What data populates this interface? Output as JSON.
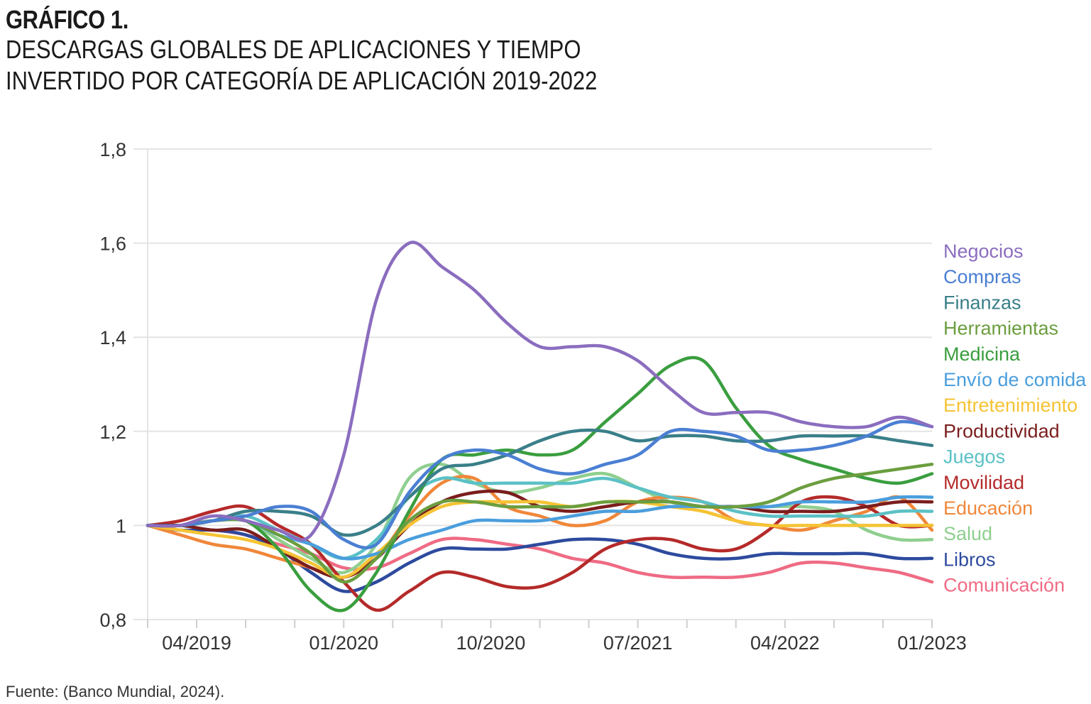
{
  "figure": {
    "label": "GRÁFICO 1.",
    "title_line1": "DESCARGAS GLOBALES DE APLICACIONES Y TIEMPO",
    "title_line2": "INVERTIDO POR CATEGORÍA DE APLICACIÓN 2019-2022",
    "source": "Fuente: (Banco Mundial, 2024)."
  },
  "chart_data": {
    "type": "line",
    "title": "DESCARGAS GLOBALES DE APLICACIONES Y TIEMPO INVERTIDO POR CATEGORÍA DE APLICACIÓN 2019-2022",
    "xlabel": "",
    "ylabel": "",
    "ylim": [
      0.8,
      1.8
    ],
    "yticks": [
      0.8,
      1,
      1.2,
      1.4,
      1.6,
      1.8
    ],
    "ytick_labels": [
      "0,8",
      "1",
      "1,2",
      "1,4",
      "1,6",
      "1,8"
    ],
    "xlim": [
      "2019-01",
      "2023-01"
    ],
    "xticks": [
      "2019-04",
      "2020-01",
      "2020-10",
      "2021-07",
      "2022-04",
      "2023-01"
    ],
    "xtick_labels": [
      "04/2019",
      "01/2020",
      "10/2020",
      "07/2021",
      "04/2022",
      "01/2023"
    ],
    "grid": "horizontal",
    "legend": "right",
    "x": [
      "2019-01",
      "2019-03",
      "2019-05",
      "2019-07",
      "2019-09",
      "2019-11",
      "2020-01",
      "2020-03",
      "2020-05",
      "2020-07",
      "2020-09",
      "2020-11",
      "2021-01",
      "2021-03",
      "2021-05",
      "2021-07",
      "2021-09",
      "2021-11",
      "2022-01",
      "2022-03",
      "2022-05",
      "2022-07",
      "2022-09",
      "2022-11",
      "2023-01"
    ],
    "series": [
      {
        "name": "Negocios",
        "color": "#8b6dbf",
        "values": [
          1.0,
          1.0,
          1.02,
          1.01,
          0.99,
          0.98,
          1.15,
          1.48,
          1.6,
          1.55,
          1.5,
          1.43,
          1.38,
          1.38,
          1.38,
          1.35,
          1.29,
          1.24,
          1.24,
          1.24,
          1.22,
          1.21,
          1.21,
          1.23,
          1.21
        ]
      },
      {
        "name": "Compras",
        "color": "#4a7fd3",
        "values": [
          1.0,
          1.0,
          1.01,
          1.02,
          1.04,
          1.03,
          0.97,
          0.96,
          1.07,
          1.14,
          1.16,
          1.15,
          1.12,
          1.11,
          1.13,
          1.15,
          1.2,
          1.2,
          1.19,
          1.16,
          1.16,
          1.17,
          1.19,
          1.22,
          1.21
        ]
      },
      {
        "name": "Finanzas",
        "color": "#3a7f89",
        "values": [
          1.0,
          1.0,
          1.01,
          1.03,
          1.03,
          1.02,
          0.98,
          1.0,
          1.06,
          1.12,
          1.13,
          1.15,
          1.18,
          1.2,
          1.2,
          1.18,
          1.19,
          1.19,
          1.18,
          1.18,
          1.19,
          1.19,
          1.19,
          1.18,
          1.17
        ]
      },
      {
        "name": "Herramientas",
        "color": "#6b9e3f",
        "values": [
          1.0,
          1.0,
          1.01,
          1.01,
          0.98,
          0.94,
          0.88,
          0.93,
          1.01,
          1.05,
          1.05,
          1.04,
          1.04,
          1.04,
          1.05,
          1.05,
          1.05,
          1.04,
          1.04,
          1.05,
          1.08,
          1.1,
          1.11,
          1.12,
          1.13
        ]
      },
      {
        "name": "Medicina",
        "color": "#3a9e3f",
        "values": [
          1.0,
          1.0,
          1.01,
          1.01,
          0.95,
          0.86,
          0.82,
          0.9,
          1.03,
          1.14,
          1.15,
          1.16,
          1.15,
          1.16,
          1.22,
          1.28,
          1.34,
          1.35,
          1.25,
          1.17,
          1.14,
          1.12,
          1.1,
          1.09,
          1.11
        ]
      },
      {
        "name": "Envío de comida",
        "color": "#4a9edd",
        "values": [
          1.0,
          1.0,
          1.01,
          1.01,
          0.98,
          0.96,
          0.93,
          0.94,
          0.97,
          0.99,
          1.01,
          1.01,
          1.01,
          1.02,
          1.03,
          1.03,
          1.04,
          1.04,
          1.04,
          1.04,
          1.05,
          1.05,
          1.05,
          1.06,
          1.06
        ]
      },
      {
        "name": "Entretenimiento",
        "color": "#f5c334",
        "values": [
          1.0,
          0.99,
          0.98,
          0.97,
          0.95,
          0.92,
          0.89,
          0.94,
          1.0,
          1.04,
          1.05,
          1.05,
          1.05,
          1.04,
          1.05,
          1.05,
          1.04,
          1.03,
          1.01,
          1.0,
          1.0,
          1.0,
          1.0,
          1.0,
          1.0
        ]
      },
      {
        "name": "Productividad",
        "color": "#7b1d1d",
        "values": [
          1.0,
          1.0,
          0.99,
          0.99,
          0.95,
          0.91,
          0.89,
          0.93,
          1.0,
          1.05,
          1.07,
          1.07,
          1.04,
          1.03,
          1.04,
          1.05,
          1.05,
          1.04,
          1.04,
          1.03,
          1.03,
          1.03,
          1.04,
          1.05,
          1.05
        ]
      },
      {
        "name": "Juegos",
        "color": "#5bc1c6",
        "values": [
          1.0,
          1.0,
          1.01,
          1.02,
          0.99,
          0.96,
          0.93,
          0.97,
          1.06,
          1.1,
          1.09,
          1.09,
          1.09,
          1.09,
          1.1,
          1.08,
          1.06,
          1.05,
          1.03,
          1.02,
          1.02,
          1.02,
          1.02,
          1.03,
          1.03
        ]
      },
      {
        "name": "Movilidad",
        "color": "#b52a2a",
        "values": [
          1.0,
          1.01,
          1.03,
          1.04,
          1.0,
          0.96,
          0.88,
          0.82,
          0.86,
          0.9,
          0.89,
          0.87,
          0.87,
          0.9,
          0.95,
          0.97,
          0.97,
          0.95,
          0.95,
          0.99,
          1.05,
          1.06,
          1.04,
          1.0,
          1.0
        ]
      },
      {
        "name": "Educación",
        "color": "#f0873a",
        "values": [
          1.0,
          0.98,
          0.96,
          0.95,
          0.93,
          0.91,
          0.89,
          0.93,
          1.02,
          1.09,
          1.1,
          1.04,
          1.02,
          1.0,
          1.01,
          1.05,
          1.06,
          1.05,
          1.01,
          1.0,
          0.99,
          1.01,
          1.03,
          1.06,
          0.99
        ]
      },
      {
        "name": "Salud",
        "color": "#8fcf8f",
        "values": [
          1.0,
          1.0,
          1.01,
          1.01,
          0.97,
          0.93,
          0.9,
          0.96,
          1.1,
          1.13,
          1.09,
          1.07,
          1.08,
          1.1,
          1.11,
          1.08,
          1.05,
          1.04,
          1.04,
          1.04,
          1.04,
          1.03,
          0.99,
          0.97,
          0.97
        ]
      },
      {
        "name": "Libros",
        "color": "#2d4a9e",
        "values": [
          1.0,
          0.99,
          0.99,
          0.98,
          0.95,
          0.9,
          0.86,
          0.88,
          0.92,
          0.95,
          0.95,
          0.95,
          0.96,
          0.97,
          0.97,
          0.96,
          0.94,
          0.93,
          0.93,
          0.94,
          0.94,
          0.94,
          0.94,
          0.93,
          0.93
        ]
      },
      {
        "name": "Comunicación",
        "color": "#ef6b84",
        "values": [
          1.0,
          0.99,
          0.99,
          0.98,
          0.96,
          0.94,
          0.91,
          0.91,
          0.94,
          0.97,
          0.97,
          0.96,
          0.95,
          0.93,
          0.92,
          0.9,
          0.89,
          0.89,
          0.89,
          0.9,
          0.92,
          0.92,
          0.91,
          0.9,
          0.88
        ]
      }
    ]
  }
}
